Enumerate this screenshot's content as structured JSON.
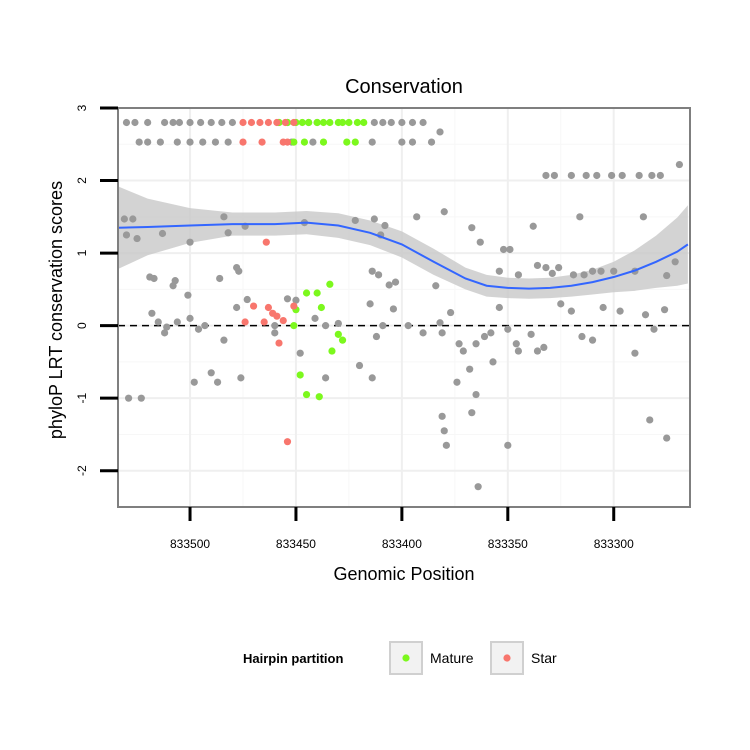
{
  "chart_data": {
    "type": "scatter",
    "title": "Conservation",
    "xlabel": "Genomic Position",
    "ylabel": "phyloP LRT conservation scores",
    "x_reversed": true,
    "xlim": [
      833534,
      833264
    ],
    "ylim": [
      -2.5,
      3.0
    ],
    "xticks": [
      833500,
      833450,
      833400,
      833350,
      833300
    ],
    "xtick_labels": [
      "833500",
      "833450",
      "833400",
      "833350",
      "833300"
    ],
    "yticks": [
      -2,
      -1,
      0,
      1,
      2,
      3
    ],
    "ytick_labels": [
      "-2",
      "-1",
      "0",
      "1",
      "2",
      "3"
    ],
    "reference_line": {
      "y": 0,
      "style": "dashed"
    },
    "legend": {
      "title": "Hairpin partition",
      "entries": [
        {
          "label": "Mature",
          "color": "#7cf81d"
        },
        {
          "label": "Star",
          "color": "#f8766d"
        }
      ]
    },
    "colors": {
      "other": "#999999",
      "mature": "#7cf81d",
      "star": "#f8766d",
      "smooth": "#3366ff",
      "ribbon": "#c8c8c8"
    },
    "series": [
      {
        "name": "Other",
        "points": [
          [
            833530,
            2.8
          ],
          [
            833526,
            2.8
          ],
          [
            833520,
            2.8
          ],
          [
            833512,
            2.8
          ],
          [
            833508,
            2.8
          ],
          [
            833505,
            2.8
          ],
          [
            833500,
            2.8
          ],
          [
            833495,
            2.8
          ],
          [
            833490,
            2.8
          ],
          [
            833485,
            2.8
          ],
          [
            833480,
            2.8
          ],
          [
            833458,
            2.8
          ],
          [
            833454,
            2.8
          ],
          [
            833444,
            2.8
          ],
          [
            833440,
            2.8
          ],
          [
            833413,
            2.8
          ],
          [
            833409,
            2.8
          ],
          [
            833405,
            2.8
          ],
          [
            833400,
            2.8
          ],
          [
            833395,
            2.8
          ],
          [
            833390,
            2.8
          ],
          [
            833524,
            2.53
          ],
          [
            833520,
            2.53
          ],
          [
            833514,
            2.53
          ],
          [
            833506,
            2.53
          ],
          [
            833500,
            2.53
          ],
          [
            833494,
            2.53
          ],
          [
            833488,
            2.53
          ],
          [
            833482,
            2.53
          ],
          [
            833452,
            2.53
          ],
          [
            833442,
            2.53
          ],
          [
            833414,
            2.53
          ],
          [
            833400,
            2.53
          ],
          [
            833395,
            2.53
          ],
          [
            833386,
            2.53
          ],
          [
            833382,
            2.67
          ],
          [
            833332,
            2.07
          ],
          [
            833328,
            2.07
          ],
          [
            833320,
            2.07
          ],
          [
            833313,
            2.07
          ],
          [
            833308,
            2.07
          ],
          [
            833301,
            2.07
          ],
          [
            833296,
            2.07
          ],
          [
            833288,
            2.07
          ],
          [
            833282,
            2.07
          ],
          [
            833278,
            2.07
          ],
          [
            833269,
            2.22
          ],
          [
            833531,
            1.47
          ],
          [
            833527,
            1.47
          ],
          [
            833530,
            1.25
          ],
          [
            833525,
            1.2
          ],
          [
            833513,
            1.27
          ],
          [
            833500,
            1.15
          ],
          [
            833484,
            1.5
          ],
          [
            833482,
            1.28
          ],
          [
            833474,
            1.37
          ],
          [
            833446,
            1.42
          ],
          [
            833422,
            1.45
          ],
          [
            833413,
            1.47
          ],
          [
            833408,
            1.38
          ],
          [
            833410,
            1.25
          ],
          [
            833393,
            1.5
          ],
          [
            833380,
            1.57
          ],
          [
            833367,
            1.35
          ],
          [
            833363,
            1.15
          ],
          [
            833352,
            1.05
          ],
          [
            833349,
            1.05
          ],
          [
            833338,
            1.37
          ],
          [
            833316,
            1.5
          ],
          [
            833286,
            1.5
          ],
          [
            833519,
            0.67
          ],
          [
            833517,
            0.65
          ],
          [
            833507,
            0.62
          ],
          [
            833508,
            0.55
          ],
          [
            833486,
            0.65
          ],
          [
            833477,
            0.75
          ],
          [
            833478,
            0.8
          ],
          [
            833414,
            0.75
          ],
          [
            833411,
            0.7
          ],
          [
            833406,
            0.56
          ],
          [
            833403,
            0.6
          ],
          [
            833384,
            0.55
          ],
          [
            833354,
            0.75
          ],
          [
            833345,
            0.7
          ],
          [
            833336,
            0.83
          ],
          [
            833332,
            0.8
          ],
          [
            833329,
            0.72
          ],
          [
            833326,
            0.8
          ],
          [
            833319,
            0.7
          ],
          [
            833314,
            0.7
          ],
          [
            833310,
            0.75
          ],
          [
            833306,
            0.75
          ],
          [
            833300,
            0.75
          ],
          [
            833290,
            0.75
          ],
          [
            833275,
            0.69
          ],
          [
            833271,
            0.88
          ],
          [
            833518,
            0.17
          ],
          [
            833515,
            0.05
          ],
          [
            833512,
            -0.1
          ],
          [
            833511,
            -0.02
          ],
          [
            833506,
            0.05
          ],
          [
            833500,
            0.1
          ],
          [
            833501,
            0.42
          ],
          [
            833496,
            -0.05
          ],
          [
            833493,
            0.0
          ],
          [
            833484,
            -0.2
          ],
          [
            833478,
            0.25
          ],
          [
            833473,
            0.36
          ],
          [
            833460,
            0.0
          ],
          [
            833460,
            -0.1
          ],
          [
            833454,
            0.37
          ],
          [
            833450,
            0.35
          ],
          [
            833448,
            -0.38
          ],
          [
            833441,
            0.1
          ],
          [
            833436,
            0.0
          ],
          [
            833430,
            0.03
          ],
          [
            833415,
            0.3
          ],
          [
            833412,
            -0.15
          ],
          [
            833409,
            0.0
          ],
          [
            833404,
            0.23
          ],
          [
            833397,
            0.0
          ],
          [
            833390,
            -0.1
          ],
          [
            833382,
            0.04
          ],
          [
            833381,
            -0.1
          ],
          [
            833377,
            0.18
          ],
          [
            833373,
            -0.25
          ],
          [
            833371,
            -0.35
          ],
          [
            833365,
            -0.25
          ],
          [
            833361,
            -0.15
          ],
          [
            833358,
            -0.1
          ],
          [
            833354,
            0.25
          ],
          [
            833350,
            -0.05
          ],
          [
            833346,
            -0.25
          ],
          [
            833339,
            -0.12
          ],
          [
            833336,
            -0.35
          ],
          [
            833333,
            -0.3
          ],
          [
            833325,
            0.3
          ],
          [
            833320,
            0.2
          ],
          [
            833315,
            -0.15
          ],
          [
            833310,
            -0.2
          ],
          [
            833305,
            0.25
          ],
          [
            833297,
            0.2
          ],
          [
            833290,
            -0.38
          ],
          [
            833285,
            0.15
          ],
          [
            833281,
            -0.05
          ],
          [
            833276,
            0.22
          ],
          [
            833529,
            -1.0
          ],
          [
            833523,
            -1.0
          ],
          [
            833498,
            -0.78
          ],
          [
            833490,
            -0.65
          ],
          [
            833487,
            -0.78
          ],
          [
            833476,
            -0.72
          ],
          [
            833436,
            -0.72
          ],
          [
            833420,
            -0.55
          ],
          [
            833414,
            -0.72
          ],
          [
            833374,
            -0.78
          ],
          [
            833368,
            -0.6
          ],
          [
            833365,
            -0.95
          ],
          [
            833357,
            -0.5
          ],
          [
            833345,
            -0.35
          ],
          [
            833381,
            -1.25
          ],
          [
            833380,
            -1.45
          ],
          [
            833379,
            -1.65
          ],
          [
            833367,
            -1.2
          ],
          [
            833364,
            -2.22
          ],
          [
            833350,
            -1.65
          ],
          [
            833283,
            -1.3
          ],
          [
            833275,
            -1.55
          ]
        ]
      },
      {
        "name": "Mature",
        "points": [
          [
            833458,
            2.8
          ],
          [
            833454,
            2.8
          ],
          [
            833450,
            2.8
          ],
          [
            833447,
            2.8
          ],
          [
            833444,
            2.8
          ],
          [
            833440,
            2.8
          ],
          [
            833437,
            2.8
          ],
          [
            833434,
            2.8
          ],
          [
            833430,
            2.8
          ],
          [
            833428,
            2.8
          ],
          [
            833425,
            2.8
          ],
          [
            833421,
            2.8
          ],
          [
            833418,
            2.8
          ],
          [
            833451,
            2.53
          ],
          [
            833446,
            2.53
          ],
          [
            833437,
            2.53
          ],
          [
            833426,
            2.53
          ],
          [
            833422,
            2.53
          ],
          [
            833434,
            0.57
          ],
          [
            833445,
            0.45
          ],
          [
            833440,
            0.45
          ],
          [
            833450,
            0.22
          ],
          [
            833438,
            0.25
          ],
          [
            833451,
            0.0
          ],
          [
            833430,
            -0.12
          ],
          [
            833428,
            -0.2
          ],
          [
            833433,
            -0.35
          ],
          [
            833448,
            -0.68
          ],
          [
            833445,
            -0.95
          ],
          [
            833439,
            -0.98
          ]
        ]
      },
      {
        "name": "Star",
        "points": [
          [
            833475,
            2.8
          ],
          [
            833471,
            2.8
          ],
          [
            833467,
            2.8
          ],
          [
            833463,
            2.8
          ],
          [
            833459,
            2.8
          ],
          [
            833455,
            2.8
          ],
          [
            833451,
            2.8
          ],
          [
            833475,
            2.53
          ],
          [
            833466,
            2.53
          ],
          [
            833456,
            2.53
          ],
          [
            833454,
            2.53
          ],
          [
            833464,
            1.15
          ],
          [
            833470,
            0.27
          ],
          [
            833463,
            0.25
          ],
          [
            833461,
            0.17
          ],
          [
            833459,
            0.13
          ],
          [
            833456,
            0.07
          ],
          [
            833474,
            0.05
          ],
          [
            833465,
            0.05
          ],
          [
            833458,
            -0.24
          ],
          [
            833454,
            -1.6
          ],
          [
            833451,
            0.27
          ]
        ]
      }
    ],
    "smooth": {
      "x": [
        833534,
        833520,
        833500,
        833480,
        833460,
        833445,
        833430,
        833415,
        833400,
        833385,
        833370,
        833360,
        833350,
        833340,
        833330,
        833320,
        833310,
        833300,
        833290,
        833280,
        833270,
        833265
      ],
      "y": [
        1.35,
        1.36,
        1.38,
        1.4,
        1.4,
        1.42,
        1.38,
        1.28,
        1.12,
        0.88,
        0.65,
        0.55,
        0.52,
        0.51,
        0.52,
        0.55,
        0.6,
        0.67,
        0.76,
        0.88,
        1.02,
        1.12
      ],
      "ci_upper": [
        1.92,
        1.75,
        1.62,
        1.56,
        1.56,
        1.58,
        1.55,
        1.45,
        1.3,
        1.06,
        0.8,
        0.7,
        0.66,
        0.65,
        0.66,
        0.7,
        0.77,
        0.88,
        1.04,
        1.24,
        1.49,
        1.66
      ],
      "ci_lower": [
        0.78,
        0.97,
        1.14,
        1.24,
        1.24,
        1.26,
        1.21,
        1.11,
        0.94,
        0.7,
        0.5,
        0.4,
        0.38,
        0.37,
        0.38,
        0.4,
        0.43,
        0.46,
        0.48,
        0.52,
        0.55,
        0.58
      ]
    }
  }
}
